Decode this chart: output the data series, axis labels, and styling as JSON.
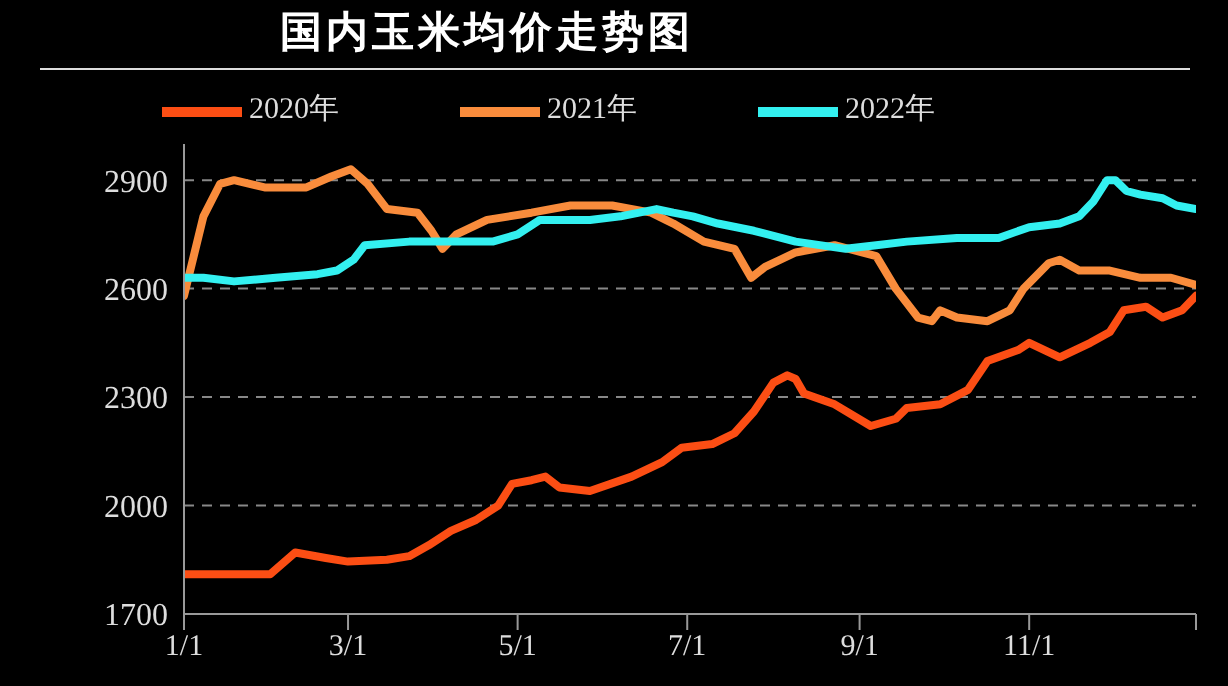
{
  "chart_data": {
    "type": "line",
    "title": "国内玉米均价走势图",
    "xlim": [
      "--01-01",
      "--12-31"
    ],
    "xticks": [
      {
        "value": "--01-01",
        "label": "1/1"
      },
      {
        "value": "--03-01",
        "label": "3/1"
      },
      {
        "value": "--05-01",
        "label": "5/1"
      },
      {
        "value": "--07-01",
        "label": "7/1"
      },
      {
        "value": "--09-01",
        "label": "9/1"
      },
      {
        "value": "--11-01",
        "label": "11/1"
      },
      {
        "value": "--12-31",
        "label": null
      }
    ],
    "ylim": [
      1700,
      3000
    ],
    "yticks": [
      1700,
      2000,
      2300,
      2600,
      2900
    ],
    "grid": "y",
    "legend": "top",
    "marker": "none",
    "line_style": "solid",
    "series": [
      {
        "name": "2020年",
        "color": "#fc4e14",
        "x": [
          "--01-01",
          "--02-01",
          "--02-10",
          "--02-21",
          "--03-01",
          "--03-15",
          "--03-23",
          "--03-30",
          "--04-07",
          "--04-16",
          "--04-24",
          "--04-29",
          "--05-06",
          "--05-11",
          "--05-16",
          "--05-27",
          "--06-11",
          "--06-22",
          "--06-29",
          "--07-10",
          "--07-18",
          "--07-25",
          "--08-01",
          "--08-06",
          "--08-09",
          "--08-12",
          "--08-23",
          "--09-05",
          "--09-14",
          "--09-18",
          "--09-30",
          "--10-10",
          "--10-17",
          "--10-28",
          "--11-01",
          "--11-12",
          "--11-23",
          "--11-30",
          "--12-05",
          "--12-13",
          "--12-19",
          "--12-26",
          "--12-31"
        ],
        "values": [
          1810,
          1810,
          1870,
          1855,
          1845,
          1850,
          1860,
          1890,
          1930,
          1960,
          2000,
          2060,
          2070,
          2080,
          2050,
          2040,
          2080,
          2120,
          2160,
          2170,
          2200,
          2260,
          2340,
          2360,
          2350,
          2310,
          2280,
          2220,
          2240,
          2270,
          2280,
          2320,
          2400,
          2430,
          2450,
          2410,
          2450,
          2480,
          2540,
          2550,
          2520,
          2540,
          2580
        ]
      },
      {
        "name": "2021年",
        "color": "#f98c3c",
        "x": [
          "--01-01",
          "--01-08",
          "--01-14",
          "--01-19",
          "--01-30",
          "--02-14",
          "--02-23",
          "--03-02",
          "--03-08",
          "--03-15",
          "--03-26",
          "--03-31",
          "--04-04",
          "--04-09",
          "--04-20",
          "--05-06",
          "--05-20",
          "--06-04",
          "--06-18",
          "--06-26",
          "--07-07",
          "--07-18",
          "--07-24",
          "--07-29",
          "--08-09",
          "--08-23",
          "--09-07",
          "--09-14",
          "--09-22",
          "--09-27",
          "--09-30",
          "--10-06",
          "--10-17",
          "--10-25",
          "--10-30",
          "--11-08",
          "--11-12",
          "--11-19",
          "--11-30",
          "--12-11",
          "--12-22",
          "--12-31"
        ],
        "values": [
          2580,
          2800,
          2890,
          2900,
          2880,
          2880,
          2910,
          2930,
          2890,
          2820,
          2810,
          2760,
          2710,
          2750,
          2790,
          2810,
          2830,
          2830,
          2810,
          2780,
          2730,
          2710,
          2630,
          2660,
          2700,
          2720,
          2690,
          2600,
          2520,
          2510,
          2540,
          2520,
          2510,
          2540,
          2600,
          2670,
          2680,
          2650,
          2650,
          2630,
          2630,
          2610
        ]
      },
      {
        "name": "2022年",
        "color": "#33f0f0",
        "x": [
          "--01-01",
          "--01-08",
          "--01-19",
          "--02-03",
          "--02-18",
          "--02-25",
          "--03-03",
          "--03-07",
          "--03-23",
          "--04-02",
          "--04-09",
          "--04-22",
          "--05-01",
          "--05-09",
          "--05-27",
          "--06-07",
          "--06-20",
          "--06-26",
          "--07-03",
          "--07-12",
          "--07-25",
          "--08-09",
          "--08-27",
          "--09-07",
          "--09-18",
          "--10-06",
          "--10-21",
          "--11-01",
          "--11-12",
          "--11-19",
          "--11-24",
          "--11-29",
          "--12-02",
          "--12-06",
          "--12-11",
          "--12-19",
          "--12-24",
          "--12-31"
        ],
        "values": [
          2630,
          2630,
          2620,
          2630,
          2640,
          2650,
          2680,
          2720,
          2730,
          2730,
          2730,
          2730,
          2750,
          2790,
          2790,
          2800,
          2820,
          2810,
          2800,
          2780,
          2760,
          2730,
          2710,
          2720,
          2730,
          2740,
          2740,
          2770,
          2780,
          2800,
          2840,
          2900,
          2900,
          2870,
          2860,
          2850,
          2830,
          2820
        ]
      }
    ]
  }
}
